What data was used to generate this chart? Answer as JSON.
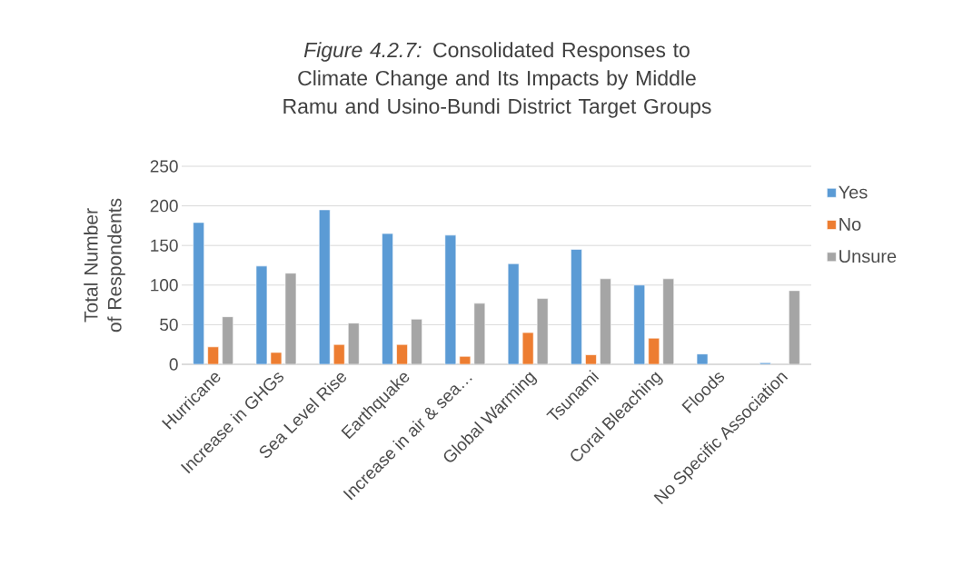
{
  "chart_data": {
    "type": "bar",
    "title": "*Figure 4.2.7:* Consolidated Responses to Climate Change and Its Impacts by Middle Ramu and Usino-Bundi District Target Groups",
    "ylabel": "Total Number of Respondents",
    "categories": [
      "Hurricane",
      "Increase in GHGs",
      "Sea Level Rise",
      "Earthquake",
      "Increase in air & sea…",
      "Global Warming",
      "Tsunami",
      "Coral Bleaching",
      "Floods",
      "No Specific Association"
    ],
    "series": [
      {
        "name": "Yes",
        "color": "#5b9bd5",
        "values": [
          179,
          124,
          195,
          165,
          163,
          127,
          145,
          100,
          13,
          2
        ]
      },
      {
        "name": "No",
        "color": "#ed7d31",
        "values": [
          22,
          15,
          25,
          25,
          10,
          40,
          12,
          33,
          null,
          null
        ]
      },
      {
        "name": "Unsure",
        "color": "#a5a5a5",
        "values": [
          60,
          115,
          52,
          57,
          77,
          83,
          108,
          108,
          null,
          93
        ]
      }
    ],
    "ylim": [
      0,
      250
    ],
    "yticks": [
      0,
      50,
      100,
      150,
      200,
      250
    ],
    "grid": "y",
    "legend": "right"
  }
}
